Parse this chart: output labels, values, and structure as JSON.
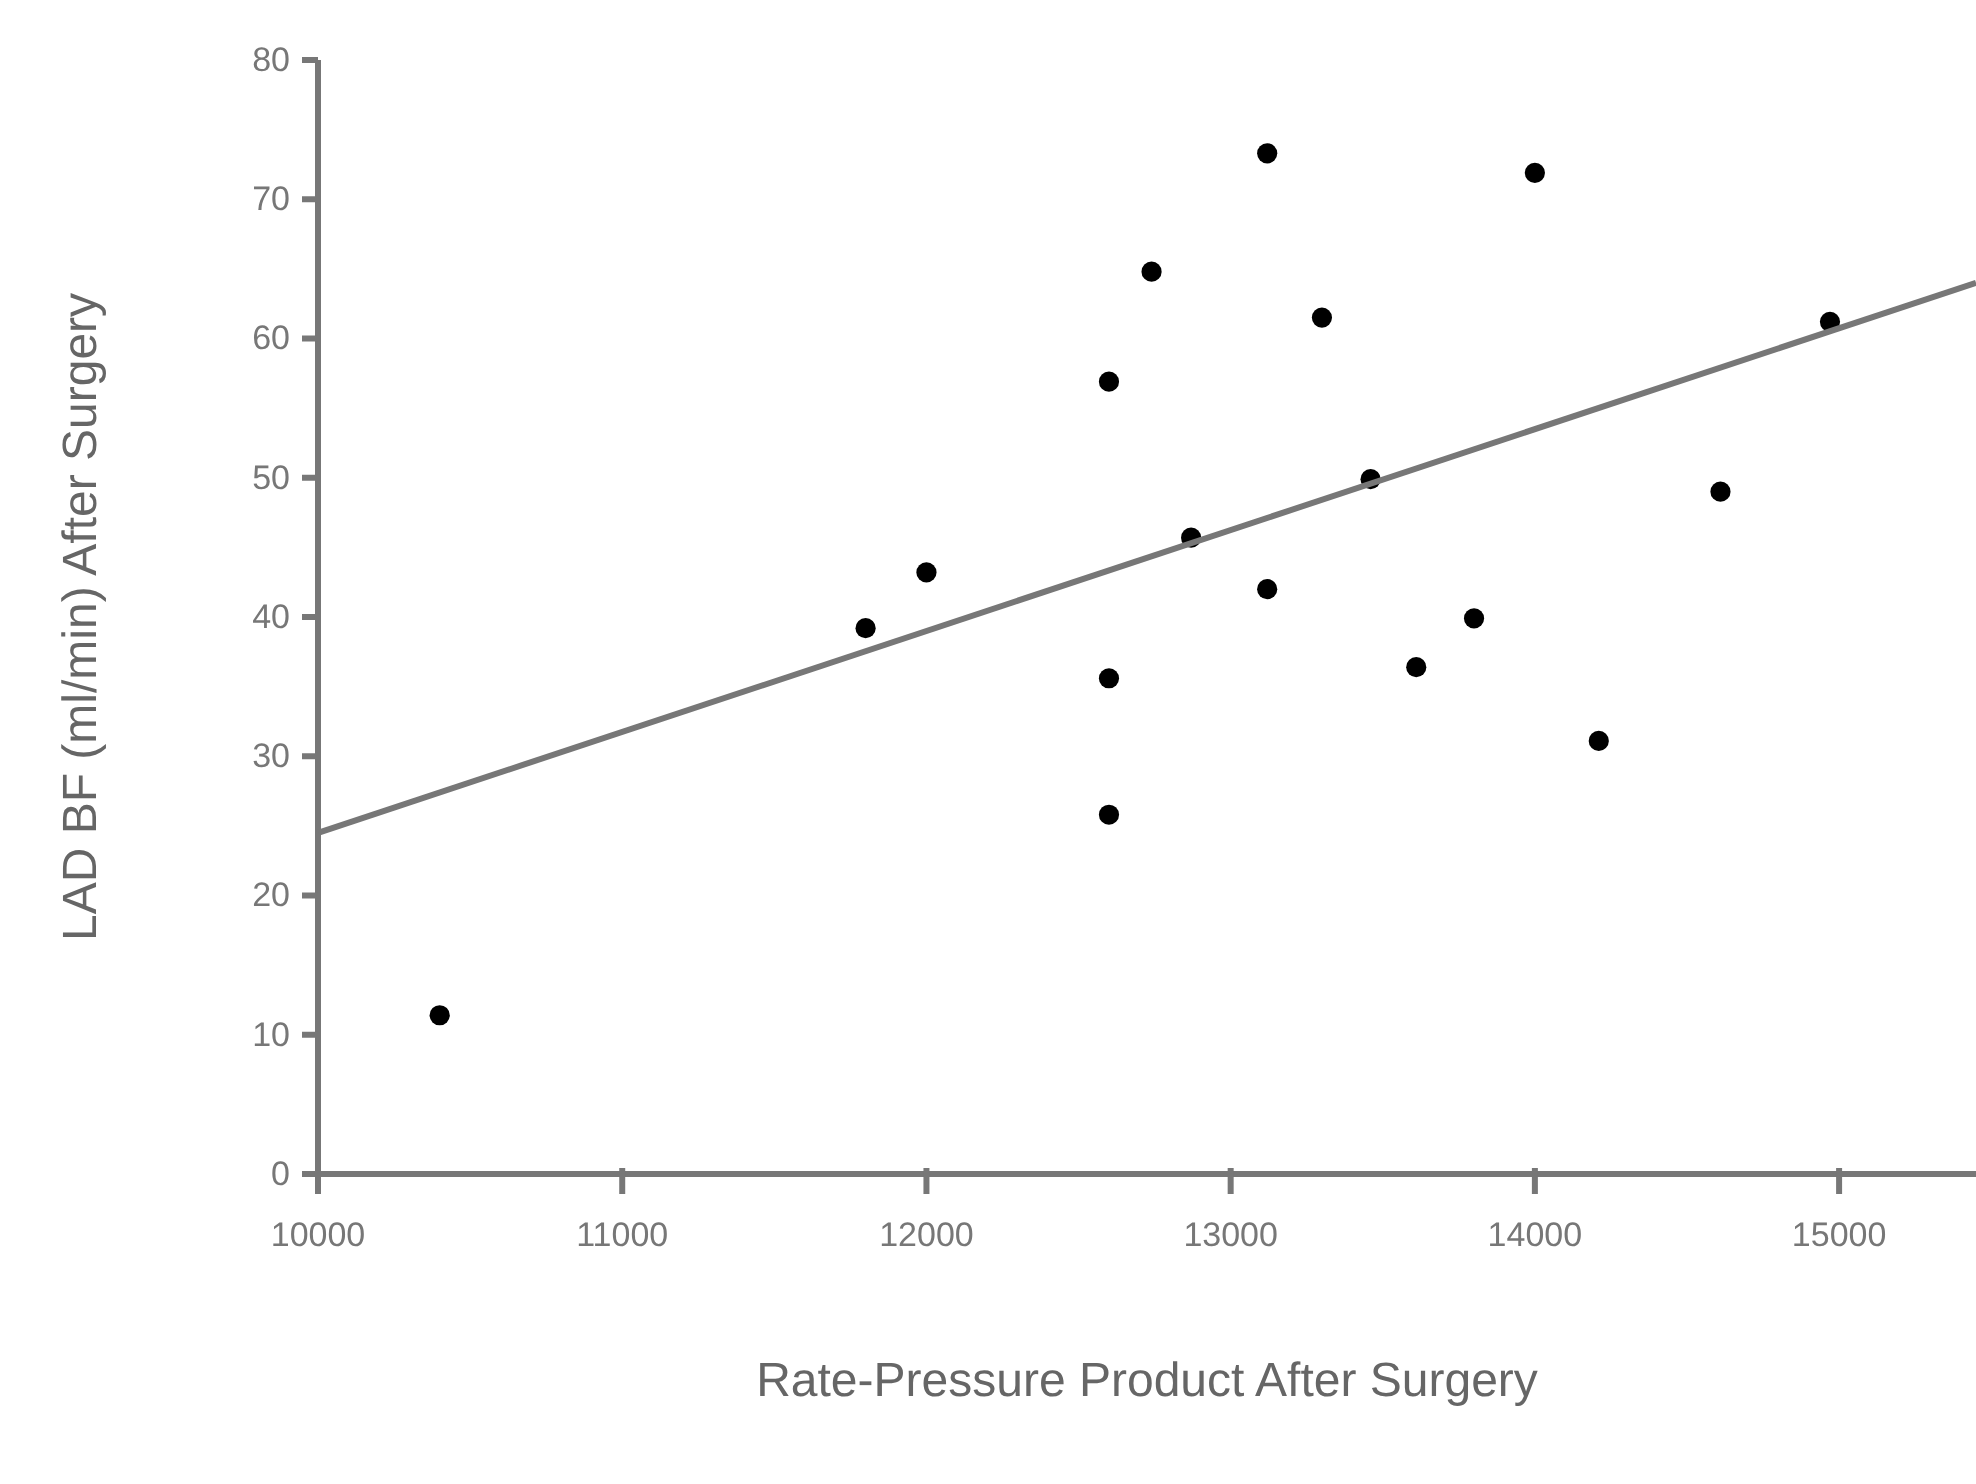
{
  "chart_data": {
    "type": "scatter",
    "xlabel": "Rate-Pressure Product After Surgery",
    "ylabel": "LAD BF (ml/min) After Surgery",
    "xlim": [
      10000,
      15450
    ],
    "ylim": [
      0,
      80
    ],
    "xticks": [
      10000,
      11000,
      12000,
      13000,
      14000,
      15000
    ],
    "yticks": [
      0,
      10,
      20,
      30,
      40,
      50,
      60,
      70,
      80
    ],
    "grid": false,
    "marker": "circle",
    "series": [
      {
        "color": "#000000",
        "x": [
          10400,
          11800,
          12000,
          12600,
          12600,
          12600,
          12740,
          12870,
          13120,
          13120,
          13300,
          13460,
          13610,
          13800,
          14000,
          14210,
          14610,
          14970
        ],
        "values": [
          11.4,
          39.2,
          43.2,
          56.9,
          35.6,
          25.8,
          64.8,
          45.7,
          73.3,
          42.0,
          61.5,
          49.9,
          36.4,
          39.9,
          71.9,
          31.1,
          49.0,
          61.2
        ]
      },
      {
        "type": "line",
        "color": "#777777",
        "line_style": "solid",
        "marker": "none",
        "x": [
          10000,
          15450
        ],
        "values": [
          24.5,
          64.0
        ]
      }
    ]
  }
}
